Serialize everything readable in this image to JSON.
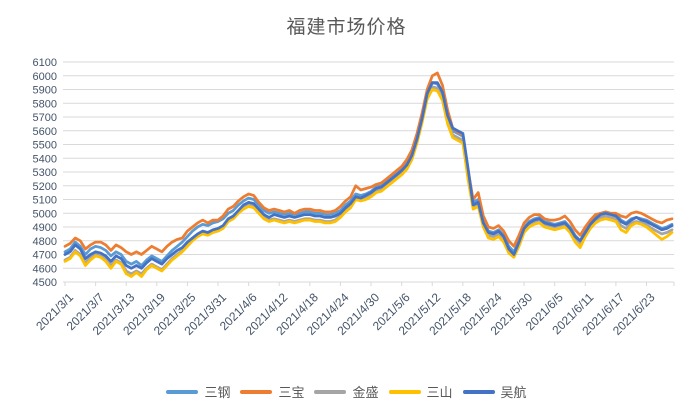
{
  "title": "福建市场价格",
  "text_colors": {
    "title": "#595959",
    "axis": "#44546A",
    "legend": "#595959",
    "gridline": "#D9D9D9"
  },
  "chart_data": {
    "type": "line",
    "title": "福建市场价格",
    "x_start": "2021/3/1",
    "x_step_days": 1,
    "x_tick_interval_days": 6,
    "x_tick_labels": [
      "2021/3/1",
      "2021/3/7",
      "2021/3/13",
      "2021/3/19",
      "2021/3/25",
      "2021/3/31",
      "2021/4/6",
      "2021/4/12",
      "2021/4/18",
      "2021/4/24",
      "2021/4/30",
      "2021/5/6",
      "2021/5/12",
      "2021/5/18",
      "2021/5/24",
      "2021/5/30",
      "2021/6/5",
      "2021/6/11",
      "2021/6/17",
      "2021/6/23"
    ],
    "ylim": [
      4500,
      6100
    ],
    "y_tick_step": 100,
    "grid": "horizontal",
    "legend_position": "bottom",
    "series": [
      {
        "name": "三钢",
        "color": "#5B9BD5",
        "values": [
          4720,
          4740,
          4790,
          4760,
          4700,
          4740,
          4760,
          4750,
          4730,
          4690,
          4720,
          4700,
          4650,
          4630,
          4650,
          4620,
          4660,
          4690,
          4670,
          4650,
          4690,
          4730,
          4760,
          4790,
          4830,
          4870,
          4900,
          4920,
          4910,
          4930,
          4940,
          4960,
          5000,
          5020,
          5060,
          5090,
          5110,
          5100,
          5060,
          5020,
          5000,
          5010,
          5000,
          4990,
          5000,
          4990,
          5000,
          5010,
          5010,
          5000,
          5000,
          4990,
          4990,
          5000,
          5020,
          5060,
          5090,
          5140,
          5130,
          5140,
          5160,
          5190,
          5200,
          5230,
          5260,
          5290,
          5320,
          5360,
          5430,
          5550,
          5700,
          5870,
          5950,
          5940,
          5870,
          5700,
          5600,
          5580,
          5560,
          5300,
          5080,
          5100,
          4950,
          4870,
          4860,
          4880,
          4840,
          4760,
          4720,
          4800,
          4900,
          4940,
          4960,
          4970,
          4940,
          4930,
          4920,
          4930,
          4940,
          4900,
          4840,
          4800,
          4870,
          4930,
          4980,
          5000,
          5010,
          5000,
          4990,
          4950,
          4930,
          4960,
          4970,
          4960,
          4950,
          4930,
          4910,
          4890,
          4900,
          4920
        ]
      },
      {
        "name": "三宝",
        "color": "#ED7D31",
        "values": [
          4760,
          4780,
          4820,
          4800,
          4740,
          4770,
          4790,
          4790,
          4770,
          4730,
          4770,
          4750,
          4720,
          4700,
          4720,
          4700,
          4730,
          4760,
          4740,
          4720,
          4760,
          4790,
          4810,
          4820,
          4870,
          4900,
          4930,
          4950,
          4930,
          4950,
          4950,
          4980,
          5030,
          5050,
          5090,
          5120,
          5140,
          5130,
          5080,
          5040,
          5020,
          5030,
          5020,
          5010,
          5020,
          5000,
          5020,
          5030,
          5030,
          5020,
          5020,
          5010,
          5010,
          5020,
          5050,
          5090,
          5120,
          5200,
          5170,
          5180,
          5190,
          5210,
          5220,
          5250,
          5280,
          5310,
          5340,
          5390,
          5460,
          5580,
          5730,
          5900,
          6000,
          6020,
          5930,
          5750,
          5620,
          5590,
          5570,
          5320,
          5100,
          5150,
          4980,
          4900,
          4890,
          4910,
          4870,
          4800,
          4760,
          4840,
          4930,
          4970,
          4990,
          4990,
          4960,
          4950,
          4950,
          4960,
          4980,
          4940,
          4880,
          4840,
          4900,
          4950,
          4990,
          5000,
          5010,
          5000,
          5000,
          4980,
          4970,
          5000,
          5010,
          5000,
          4980,
          4960,
          4940,
          4930,
          4950,
          4960
        ]
      },
      {
        "name": "金盛",
        "color": "#A5A5A5",
        "values": [
          4660,
          4680,
          4730,
          4700,
          4640,
          4680,
          4700,
          4690,
          4670,
          4620,
          4660,
          4640,
          4580,
          4560,
          4580,
          4560,
          4600,
          4630,
          4610,
          4590,
          4630,
          4670,
          4700,
          4730,
          4770,
          4810,
          4840,
          4860,
          4850,
          4870,
          4880,
          4900,
          4950,
          4970,
          5010,
          5040,
          5070,
          5060,
          5010,
          4970,
          4950,
          4960,
          4950,
          4940,
          4950,
          4940,
          4950,
          4960,
          4960,
          4950,
          4950,
          4940,
          4940,
          4950,
          4980,
          5020,
          5050,
          5110,
          5100,
          5110,
          5130,
          5160,
          5170,
          5200,
          5230,
          5260,
          5290,
          5330,
          5400,
          5520,
          5670,
          5840,
          5920,
          5910,
          5840,
          5670,
          5570,
          5550,
          5530,
          5270,
          5050,
          5070,
          4920,
          4840,
          4830,
          4850,
          4810,
          4730,
          4700,
          4780,
          4880,
          4920,
          4940,
          4950,
          4920,
          4910,
          4900,
          4910,
          4920,
          4880,
          4820,
          4780,
          4850,
          4910,
          4950,
          4970,
          4980,
          4970,
          4960,
          4910,
          4890,
          4930,
          4940,
          4930,
          4920,
          4890,
          4870,
          4850,
          4860,
          4880
        ]
      },
      {
        "name": "三山",
        "color": "#FFC000",
        "values": [
          4650,
          4670,
          4720,
          4690,
          4620,
          4660,
          4690,
          4680,
          4650,
          4600,
          4650,
          4630,
          4560,
          4540,
          4570,
          4540,
          4590,
          4620,
          4600,
          4580,
          4620,
          4660,
          4690,
          4720,
          4760,
          4800,
          4830,
          4850,
          4840,
          4860,
          4870,
          4890,
          4940,
          4960,
          5000,
          5030,
          5050,
          5040,
          5000,
          4960,
          4940,
          4950,
          4940,
          4930,
          4940,
          4930,
          4940,
          4950,
          4950,
          4940,
          4940,
          4930,
          4930,
          4940,
          4970,
          5010,
          5040,
          5100,
          5090,
          5100,
          5120,
          5150,
          5160,
          5190,
          5220,
          5250,
          5280,
          5320,
          5390,
          5510,
          5660,
          5830,
          5900,
          5890,
          5820,
          5650,
          5550,
          5530,
          5510,
          5250,
          5030,
          5050,
          4900,
          4820,
          4810,
          4830,
          4790,
          4710,
          4680,
          4760,
          4860,
          4900,
          4920,
          4930,
          4900,
          4890,
          4880,
          4890,
          4900,
          4860,
          4790,
          4750,
          4830,
          4890,
          4930,
          4950,
          4960,
          4950,
          4940,
          4880,
          4860,
          4910,
          4930,
          4920,
          4900,
          4870,
          4840,
          4810,
          4830,
          4860
        ]
      },
      {
        "name": "吴航",
        "color": "#4472C4",
        "values": [
          4700,
          4720,
          4770,
          4740,
          4670,
          4700,
          4720,
          4710,
          4690,
          4650,
          4690,
          4670,
          4620,
          4600,
          4620,
          4600,
          4640,
          4670,
          4650,
          4630,
          4670,
          4700,
          4730,
          4750,
          4790,
          4820,
          4850,
          4870,
          4860,
          4880,
          4890,
          4910,
          4960,
          4980,
          5020,
          5060,
          5080,
          5070,
          5030,
          4990,
          4970,
          4990,
          4980,
          4970,
          4980,
          4970,
          4980,
          4990,
          4990,
          4980,
          4980,
          4970,
          4970,
          4980,
          5000,
          5040,
          5070,
          5120,
          5110,
          5130,
          5150,
          5180,
          5190,
          5220,
          5250,
          5280,
          5310,
          5350,
          5420,
          5540,
          5690,
          5870,
          5950,
          5950,
          5880,
          5710,
          5620,
          5600,
          5580,
          5330,
          5060,
          5080,
          4930,
          4860,
          4850,
          4870,
          4830,
          4740,
          4700,
          4790,
          4890,
          4930,
          4950,
          4960,
          4930,
          4920,
          4910,
          4920,
          4930,
          4890,
          4830,
          4800,
          4860,
          4920,
          4960,
          4990,
          5000,
          4990,
          4980,
          4940,
          4920,
          4950,
          4970,
          4950,
          4940,
          4920,
          4900,
          4880,
          4890,
          4910
        ]
      }
    ]
  }
}
